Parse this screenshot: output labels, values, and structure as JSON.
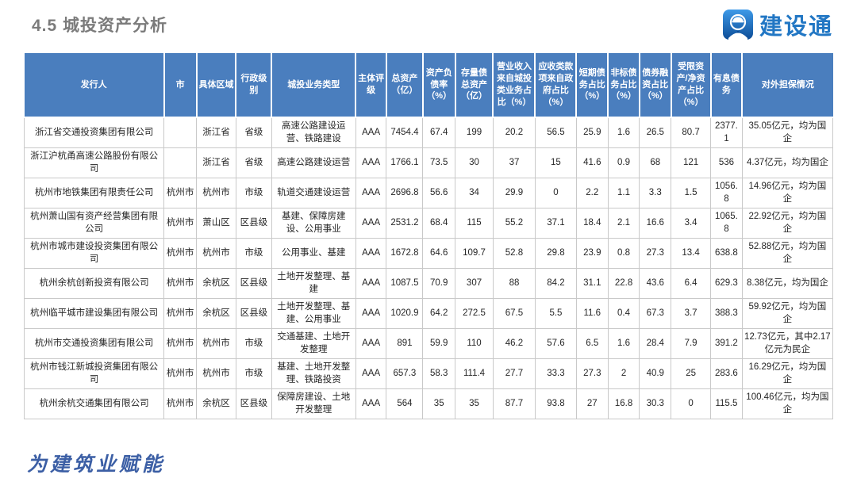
{
  "page": {
    "title": "4.5 城投资产分析"
  },
  "logo": {
    "text": "建设通",
    "icon": "construction-worker-icon",
    "brand_color": "#2277C4"
  },
  "footer": {
    "slogan": "为建筑业赋能"
  },
  "colors": {
    "table_header_bg": "#4A7EBE",
    "table_header_text": "#ffffff",
    "table_border": "#c9c9c9",
    "title_text": "#7b7b7b"
  },
  "table": {
    "headers": [
      "发行人",
      "市",
      "具体区域",
      "行政级别",
      "城投业务类型",
      "主体评级",
      "总资产（亿）",
      "资产负债率（%）",
      "存量债总资产（亿）",
      "营业收入来自城投类业务占比（%）",
      "应收类款项来自政府占比（%）",
      "短期债务占比（%）",
      "非标债务占比（%）",
      "债券融资占比（%）",
      "受限资产/净资产占比（%）",
      "有息债务",
      "对外担保情况"
    ],
    "rows": [
      [
        "浙江省交通投资集团有限公司",
        "",
        "浙江省",
        "省级",
        "高速公路建设运营、铁路建设",
        "AAA",
        "7454.4",
        "67.4",
        "199",
        "20.2",
        "56.5",
        "25.9",
        "1.6",
        "26.5",
        "80.7",
        "2377.1",
        "35.05亿元，均为国企"
      ],
      [
        "浙江沪杭甬高速公路股份有限公司",
        "",
        "浙江省",
        "省级",
        "高速公路建设运营",
        "AAA",
        "1766.1",
        "73.5",
        "30",
        "37",
        "15",
        "41.6",
        "0.9",
        "68",
        "121",
        "536",
        "4.37亿元，均为国企"
      ],
      [
        "杭州市地铁集团有限责任公司",
        "杭州市",
        "杭州市",
        "市级",
        "轨道交通建设运营",
        "AAA",
        "2696.8",
        "56.6",
        "34",
        "29.9",
        "0",
        "2.2",
        "1.1",
        "3.3",
        "1.5",
        "1056.8",
        "14.96亿元，均为国企"
      ],
      [
        "杭州萧山国有资产经营集团有限公司",
        "杭州市",
        "萧山区",
        "区县级",
        "基建、保障房建设、公用事业",
        "AAA",
        "2531.2",
        "68.4",
        "115",
        "55.2",
        "37.1",
        "18.4",
        "2.1",
        "16.6",
        "3.4",
        "1065.8",
        "22.92亿元，均为国企"
      ],
      [
        "杭州市城市建设投资集团有限公司",
        "杭州市",
        "杭州市",
        "市级",
        "公用事业、基建",
        "AAA",
        "1672.8",
        "64.6",
        "109.7",
        "52.8",
        "29.8",
        "23.9",
        "0.8",
        "27.3",
        "13.4",
        "638.8",
        "52.88亿元，均为国企"
      ],
      [
        "杭州余杭创新投资有限公司",
        "杭州市",
        "余杭区",
        "区县级",
        "土地开发整理、基建",
        "AAA",
        "1087.5",
        "70.9",
        "307",
        "88",
        "84.2",
        "31.1",
        "22.8",
        "43.6",
        "6.4",
        "629.3",
        "8.38亿元，均为国企"
      ],
      [
        "杭州临平城市建设集团有限公司",
        "杭州市",
        "余杭区",
        "区县级",
        "土地开发整理、基建、公用事业",
        "AAA",
        "1020.9",
        "64.2",
        "272.5",
        "67.5",
        "5.5",
        "11.6",
        "0.4",
        "67.3",
        "3.7",
        "388.3",
        "59.92亿元，均为国企"
      ],
      [
        "杭州市交通投资集团有限公司",
        "杭州市",
        "杭州市",
        "市级",
        "交通基建、土地开发整理",
        "AAA",
        "891",
        "59.9",
        "110",
        "46.2",
        "57.6",
        "6.5",
        "1.6",
        "28.4",
        "7.9",
        "391.2",
        "12.73亿元，其中2.17亿元为民企"
      ],
      [
        "杭州市钱江新城投资集团有限公司",
        "杭州市",
        "杭州市",
        "市级",
        "基建、土地开发整理、铁路投资",
        "AAA",
        "657.3",
        "58.3",
        "111.4",
        "27.7",
        "33.3",
        "27.3",
        "2",
        "40.9",
        "25",
        "283.6",
        "16.29亿元，均为国企"
      ],
      [
        "杭州余杭交通集团有限公司",
        "杭州市",
        "余杭区",
        "区县级",
        "保障房建设、土地开发整理",
        "AAA",
        "564",
        "35",
        "35",
        "87.7",
        "93.8",
        "27",
        "16.8",
        "30.3",
        "0",
        "115.5",
        "100.46亿元，均为国企"
      ]
    ]
  }
}
